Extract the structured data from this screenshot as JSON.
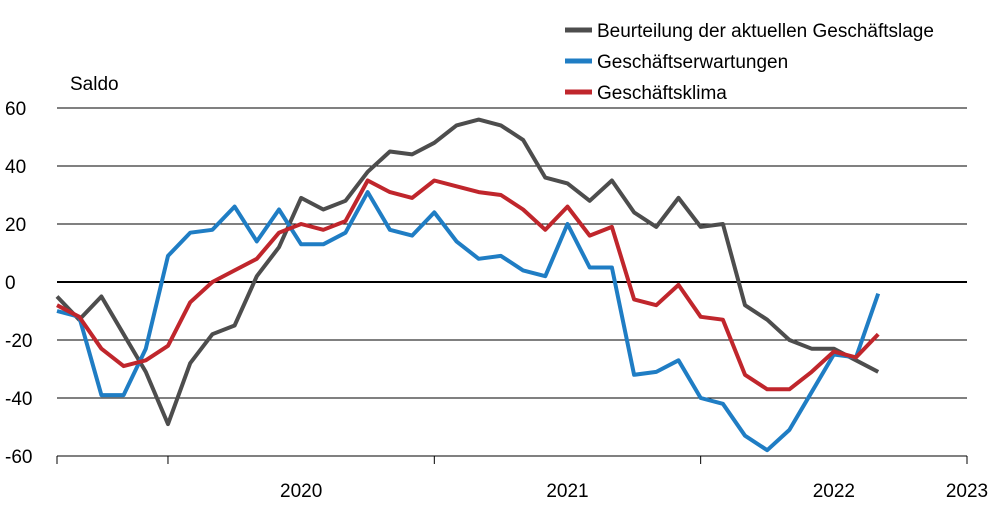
{
  "chart_data": {
    "type": "line",
    "ylabel": "Saldo",
    "ylim": [
      -60,
      60
    ],
    "yticks": [
      60,
      40,
      20,
      0,
      -20,
      -40,
      -60
    ],
    "year_labels": [
      "2020",
      "2021",
      "2022",
      "2023"
    ],
    "x_start": "2019-08",
    "grid": true,
    "legend_placement": "top-right",
    "x": [
      "2019-08",
      "2019-09",
      "2019-10",
      "2019-11",
      "2019-12",
      "2020-01",
      "2020-02",
      "2020-03",
      "2020-04",
      "2020-05",
      "2020-06",
      "2020-07",
      "2020-08",
      "2020-09",
      "2020-10",
      "2020-11",
      "2020-12",
      "2021-01",
      "2021-02",
      "2021-03",
      "2021-04",
      "2021-05",
      "2021-06",
      "2021-07",
      "2021-08",
      "2021-09",
      "2021-10",
      "2021-11",
      "2021-12",
      "2022-01",
      "2022-02",
      "2022-03",
      "2022-04",
      "2022-05",
      "2022-06",
      "2022-07",
      "2022-08",
      "2022-09",
      "2022-10",
      "2022-11",
      "2022-12",
      "2023-01"
    ],
    "series": [
      {
        "name": "Beurteilung der aktuellen Geschäftslage",
        "color": "#4d4d4d",
        "values": [
          -5,
          -13,
          -5,
          -18,
          -31,
          -49,
          -28,
          -18,
          -15,
          2,
          12,
          29,
          25,
          28,
          38,
          45,
          44,
          48,
          54,
          56,
          54,
          49,
          36,
          34,
          28,
          35,
          24,
          19,
          29,
          19,
          20,
          -8,
          -13,
          -20,
          -23,
          -23,
          -27,
          -31,
          null,
          null,
          null,
          null
        ]
      },
      {
        "name": "Geschäftserwartungen",
        "color": "#1f7dc4",
        "values": [
          -10,
          -12,
          -39,
          -39,
          -23,
          9,
          17,
          18,
          26,
          14,
          25,
          13,
          13,
          17,
          31,
          18,
          16,
          24,
          14,
          8,
          9,
          4,
          2,
          20,
          5,
          5,
          -32,
          -31,
          -27,
          -40,
          -42,
          -53,
          -58,
          -51,
          -38,
          -25,
          -26,
          -4,
          null,
          null,
          null,
          null
        ]
      },
      {
        "name": "Geschäftsklima",
        "color": "#c0262c",
        "values": [
          -8,
          -12,
          -23,
          -29,
          -27,
          -22,
          -7,
          0,
          4,
          8,
          17,
          20,
          18,
          21,
          35,
          31,
          29,
          35,
          33,
          31,
          30,
          25,
          18,
          26,
          16,
          19,
          -6,
          -8,
          -1,
          -12,
          -13,
          -32,
          -37,
          -37,
          -31,
          -24,
          -26,
          -18,
          null,
          null,
          null,
          null
        ]
      }
    ]
  }
}
